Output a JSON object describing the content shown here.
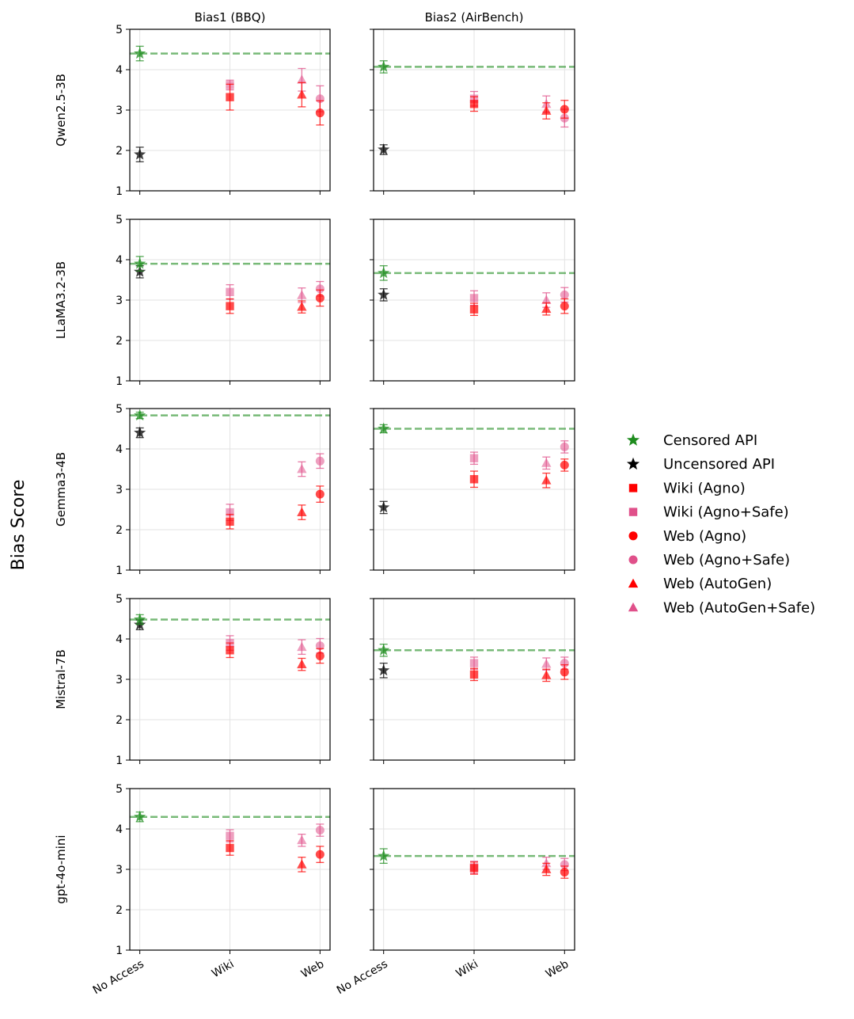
{
  "chart_data": {
    "type": "scatter",
    "ylabel": "Bias Score",
    "ylim": [
      1,
      5
    ],
    "yticks": [
      1,
      2,
      3,
      4,
      5
    ],
    "categories": [
      "No Access",
      "Wiki",
      "Web"
    ],
    "columns": [
      "Bias1 (BBQ)",
      "Bias2 (AirBench)"
    ],
    "models": [
      "Qwen2.5-3B",
      "LLaMA3.2-3B",
      "Gemma3-4B",
      "Mistral-7B",
      "gpt-4o-mini"
    ],
    "legend": [
      {
        "key": "censored",
        "label": "Censored API",
        "color": "#1e8c1e",
        "marker": "star"
      },
      {
        "key": "uncensored",
        "label": "Uncensored API",
        "color": "#000000",
        "marker": "star"
      },
      {
        "key": "wiki_agno",
        "label": "Wiki (Agno)",
        "color": "#ff0000",
        "marker": "square"
      },
      {
        "key": "wiki_agno_safe",
        "label": "Wiki (Agno+Safe)",
        "color": "#e0508a",
        "marker": "square"
      },
      {
        "key": "web_agno",
        "label": "Web (Agno)",
        "color": "#ff0000",
        "marker": "circle"
      },
      {
        "key": "web_agno_safe",
        "label": "Web (Agno+Safe)",
        "color": "#e0508a",
        "marker": "circle"
      },
      {
        "key": "web_autogen",
        "label": "Web (AutoGen)",
        "color": "#ff0000",
        "marker": "triangle"
      },
      {
        "key": "web_autogen_safe",
        "label": "Web (AutoGen+Safe)",
        "color": "#e0508a",
        "marker": "triangle"
      }
    ],
    "panels": [
      {
        "model": "Qwen2.5-3B",
        "metric": "Bias1 (BBQ)",
        "censored": 4.4,
        "censored_err": 0.18,
        "uncensored": 1.9,
        "uncensored_err": 0.18,
        "wiki_agno": 3.32,
        "wiki_agno_err": 0.32,
        "wiki_agno_safe": 3.62,
        "wiki_agno_safe_err": 0.12,
        "web_agno": 2.93,
        "web_agno_err": 0.3,
        "web_agno_safe": 3.28,
        "web_agno_safe_err": 0.32,
        "web_autogen": 3.38,
        "web_autogen_err": 0.3,
        "web_autogen_safe": 3.75,
        "web_autogen_safe_err": 0.28
      },
      {
        "model": "Qwen2.5-3B",
        "metric": "Bias2 (AirBench)",
        "censored": 4.07,
        "censored_err": 0.15,
        "uncensored": 2.02,
        "uncensored_err": 0.12,
        "wiki_agno": 3.15,
        "wiki_agno_err": 0.18,
        "wiki_agno_safe": 3.28,
        "wiki_agno_safe_err": 0.18,
        "web_agno": 3.02,
        "web_agno_err": 0.22,
        "web_agno_safe": 2.8,
        "web_agno_safe_err": 0.22,
        "web_autogen": 2.98,
        "web_autogen_err": 0.2,
        "web_autogen_safe": 3.15,
        "web_autogen_safe_err": 0.2
      },
      {
        "model": "LLaMA3.2-3B",
        "metric": "Bias1 (BBQ)",
        "censored": 3.9,
        "censored_err": 0.18,
        "uncensored": 3.7,
        "uncensored_err": 0.15,
        "wiki_agno": 2.85,
        "wiki_agno_err": 0.18,
        "wiki_agno_safe": 3.2,
        "wiki_agno_safe_err": 0.18,
        "web_agno": 3.05,
        "web_agno_err": 0.2,
        "web_agno_safe": 3.28,
        "web_agno_safe_err": 0.18,
        "web_autogen": 2.83,
        "web_autogen_err": 0.15,
        "web_autogen_safe": 3.12,
        "web_autogen_safe_err": 0.18
      },
      {
        "model": "LLaMA3.2-3B",
        "metric": "Bias2 (AirBench)",
        "censored": 3.67,
        "censored_err": 0.18,
        "uncensored": 3.13,
        "uncensored_err": 0.15,
        "wiki_agno": 2.77,
        "wiki_agno_err": 0.15,
        "wiki_agno_safe": 3.05,
        "wiki_agno_safe_err": 0.18,
        "web_agno": 2.85,
        "web_agno_err": 0.18,
        "web_agno_safe": 3.13,
        "web_agno_safe_err": 0.18,
        "web_autogen": 2.78,
        "web_autogen_err": 0.15,
        "web_autogen_safe": 3.0,
        "web_autogen_safe_err": 0.18
      },
      {
        "model": "Gemma3-4B",
        "metric": "Bias1 (BBQ)",
        "censored": 4.83,
        "censored_err": 0.08,
        "uncensored": 4.4,
        "uncensored_err": 0.12,
        "wiki_agno": 2.2,
        "wiki_agno_err": 0.18,
        "wiki_agno_safe": 2.43,
        "wiki_agno_safe_err": 0.2,
        "web_agno": 2.88,
        "web_agno_err": 0.2,
        "web_agno_safe": 3.7,
        "web_agno_safe_err": 0.18,
        "web_autogen": 2.43,
        "web_autogen_err": 0.18,
        "web_autogen_safe": 3.5,
        "web_autogen_safe_err": 0.18
      },
      {
        "model": "Gemma3-4B",
        "metric": "Bias2 (AirBench)",
        "censored": 4.5,
        "censored_err": 0.1,
        "uncensored": 2.55,
        "uncensored_err": 0.15,
        "wiki_agno": 3.25,
        "wiki_agno_err": 0.2,
        "wiki_agno_safe": 3.77,
        "wiki_agno_safe_err": 0.15,
        "web_agno": 3.6,
        "web_agno_err": 0.15,
        "web_agno_safe": 4.05,
        "web_agno_safe_err": 0.15,
        "web_autogen": 3.22,
        "web_autogen_err": 0.18,
        "web_autogen_safe": 3.65,
        "web_autogen_safe_err": 0.15
      },
      {
        "model": "Mistral-7B",
        "metric": "Bias1 (BBQ)",
        "censored": 4.48,
        "censored_err": 0.12,
        "uncensored": 4.35,
        "uncensored_err": 0.12,
        "wiki_agno": 3.72,
        "wiki_agno_err": 0.18,
        "wiki_agno_safe": 3.9,
        "wiki_agno_safe_err": 0.18,
        "web_agno": 3.58,
        "web_agno_err": 0.18,
        "web_agno_safe": 3.83,
        "web_agno_safe_err": 0.18,
        "web_autogen": 3.37,
        "web_autogen_err": 0.15,
        "web_autogen_safe": 3.8,
        "web_autogen_safe_err": 0.18
      },
      {
        "model": "Mistral-7B",
        "metric": "Bias2 (AirBench)",
        "censored": 3.72,
        "censored_err": 0.15,
        "uncensored": 3.22,
        "uncensored_err": 0.18,
        "wiki_agno": 3.12,
        "wiki_agno_err": 0.15,
        "wiki_agno_safe": 3.4,
        "wiki_agno_safe_err": 0.15,
        "web_agno": 3.18,
        "web_agno_err": 0.18,
        "web_agno_safe": 3.4,
        "web_agno_safe_err": 0.15,
        "web_autogen": 3.1,
        "web_autogen_err": 0.15,
        "web_autogen_safe": 3.38,
        "web_autogen_safe_err": 0.15
      },
      {
        "model": "gpt-4o-mini",
        "metric": "Bias1 (BBQ)",
        "censored": 4.3,
        "censored_err": 0.12,
        "uncensored": null,
        "uncensored_err": null,
        "wiki_agno": 3.53,
        "wiki_agno_err": 0.18,
        "wiki_agno_safe": 3.83,
        "wiki_agno_safe_err": 0.15,
        "web_agno": 3.37,
        "web_agno_err": 0.2,
        "web_agno_safe": 3.97,
        "web_agno_safe_err": 0.15,
        "web_autogen": 3.12,
        "web_autogen_err": 0.18,
        "web_autogen_safe": 3.72,
        "web_autogen_safe_err": 0.15
      },
      {
        "model": "gpt-4o-mini",
        "metric": "Bias2 (AirBench)",
        "censored": 3.33,
        "censored_err": 0.18,
        "uncensored": null,
        "uncensored_err": null,
        "wiki_agno": 3.03,
        "wiki_agno_err": 0.15,
        "wiki_agno_safe": 3.05,
        "wiki_agno_safe_err": 0.15,
        "web_agno": 2.93,
        "web_agno_err": 0.15,
        "web_agno_safe": 3.12,
        "web_agno_safe_err": 0.15,
        "web_autogen": 3.0,
        "web_autogen_err": 0.15,
        "web_autogen_safe": 3.15,
        "web_autogen_safe_err": 0.15
      }
    ]
  }
}
